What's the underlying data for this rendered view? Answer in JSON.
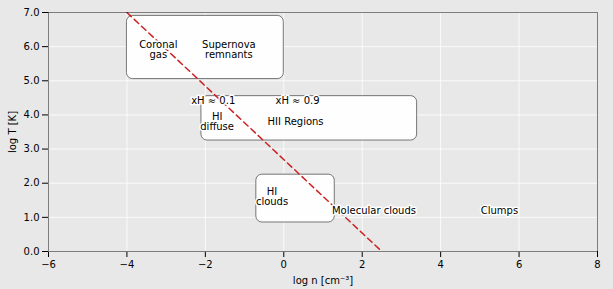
{
  "chart_data": {
    "type": "line",
    "xlabel": "log n [cm⁻³]",
    "ylabel": "log T [K]",
    "xlim": [
      -6,
      8
    ],
    "ylim": [
      0,
      7
    ],
    "xticks": [
      -6,
      -4,
      -2,
      0,
      2,
      4,
      6,
      8
    ],
    "yticks": [
      0,
      1,
      2,
      3,
      4,
      5,
      6,
      7
    ],
    "grid": true,
    "series": [
      {
        "x": [
          -4,
          2.5
        ],
        "values": [
          7,
          0
        ],
        "color": "#cc2222",
        "line_style": "dashed"
      }
    ],
    "regions": [
      {
        "x1": -4.0,
        "x2": 0.0,
        "y1": 5.05,
        "y2": 6.9
      },
      {
        "x1": -2.1,
        "x2": 3.4,
        "y1": 3.25,
        "y2": 4.55
      },
      {
        "x1": -0.7,
        "x2": 1.3,
        "y1": 0.85,
        "y2": 2.25
      }
    ],
    "annotations": [
      {
        "text": "Coronal\ngas",
        "x": -3.2,
        "y": 5.9
      },
      {
        "text": "Supernova\nremnants",
        "x": -1.4,
        "y": 5.9
      },
      {
        "text": "HI\ndiffuse",
        "x": -1.7,
        "y": 3.8
      },
      {
        "text": "HII Regions",
        "x": 0.3,
        "y": 3.8
      },
      {
        "text": "HI\nclouds",
        "x": -0.3,
        "y": 1.6
      },
      {
        "text": "Molecular clouds",
        "x": 2.3,
        "y": 1.2
      },
      {
        "text": "Clumps",
        "x": 5.5,
        "y": 1.2
      },
      {
        "text": "xH ≈ 0.1",
        "x": -1.8,
        "y": 4.42
      },
      {
        "text": "xH ≈ 0.9",
        "x": 0.35,
        "y": 4.42
      }
    ]
  }
}
